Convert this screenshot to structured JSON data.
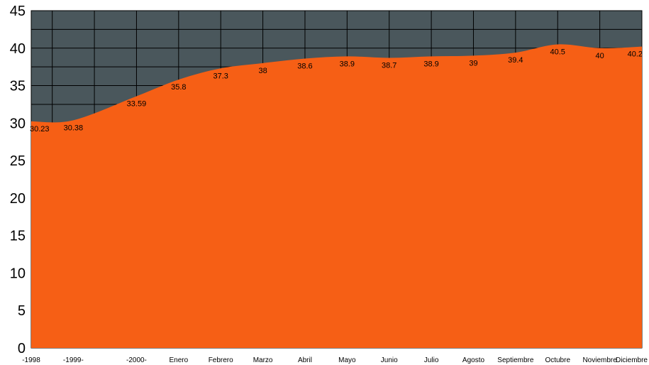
{
  "colors": {
    "plot_background": "#4a575c",
    "area_fill": "#f65f15",
    "grid": "#000000"
  },
  "chart_data": {
    "type": "area",
    "title": "",
    "xlabel": "",
    "ylabel": "",
    "categories": [
      "-1998",
      "-1999-",
      "-2000-",
      "Enero",
      "Febrero",
      "Marzo",
      "Abril",
      "Mayo",
      "Junio",
      "Julio",
      "Agosto",
      "Septiembre",
      "Octubre",
      "Noviembre",
      "Diciembre"
    ],
    "x_positions": [
      0,
      1,
      2.5,
      3.5,
      4.5,
      5.5,
      6.5,
      7.5,
      8.5,
      9.5,
      10.5,
      11.5,
      12.5,
      13.5,
      14.5
    ],
    "series": [
      {
        "values": [
          30.23,
          30.38,
          33.59,
          35.8,
          37.3,
          38,
          38.6,
          38.9,
          38.7,
          38.9,
          39,
          39.4,
          40.5,
          40,
          40.2
        ],
        "labels": [
          "30.23",
          "30.38",
          "33.59",
          "35.8",
          "37.3",
          "38",
          "38.6",
          "38.9",
          "38.7",
          "38.9",
          "39",
          "39.4",
          "40.5",
          "40",
          "40.2"
        ]
      }
    ],
    "ylim": [
      0,
      45
    ],
    "yticks": [
      "0",
      "5",
      "10",
      "15",
      "20",
      "25",
      "30",
      "35",
      "40",
      "45"
    ],
    "ytick_values": [
      0,
      5,
      10,
      15,
      20,
      25,
      30,
      35,
      40,
      45
    ],
    "grid": true,
    "legend": "none"
  }
}
